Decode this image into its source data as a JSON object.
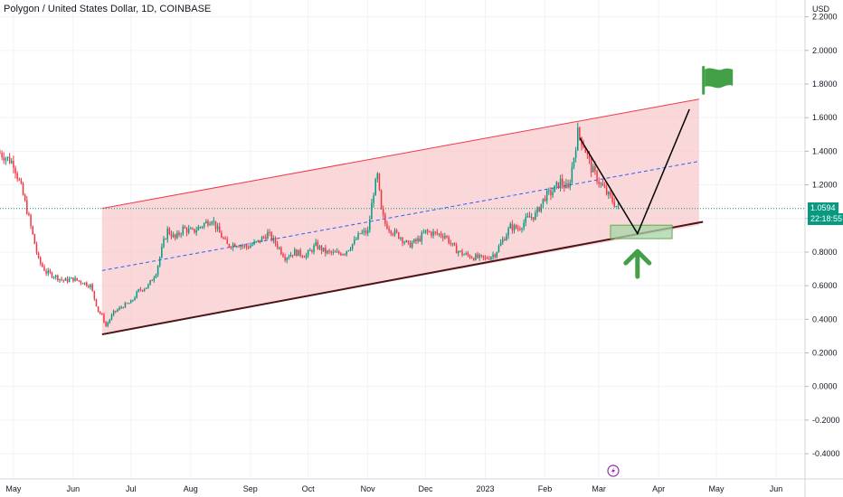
{
  "header": {
    "title": "Polygon / United States Dollar, 1D, COINBASE"
  },
  "price_scale": {
    "unit": "USD"
  },
  "last_price": {
    "value": "1.0594",
    "countdown": "22:18:55",
    "color": "#089981"
  },
  "colors": {
    "channel_fill": "#f8c6c8",
    "channel_line": "#f23645",
    "support_line": "#4a1418",
    "midline": "#2962ff",
    "up_candle": "#089981",
    "down_candle": "#f23645",
    "target_zone": "#a5d6a7",
    "arrow": "#43a047",
    "flag": "#43a047",
    "path_line": "#000000"
  },
  "icons": {
    "flag": "flag-icon",
    "arrow": "up-arrow-icon",
    "bolt": "lightning-icon"
  },
  "chart_data": {
    "type": "candlestick",
    "y_ticks": [
      "2.2000",
      "2.0000",
      "1.8000",
      "1.6000",
      "1.4000",
      "1.2000",
      "1.0000",
      "0.8000",
      "0.6000",
      "0.4000",
      "0.2000",
      "0.0000",
      "-0.2000",
      "-0.4000"
    ],
    "y_tick_values": [
      2.2,
      2.0,
      1.8,
      1.6,
      1.4,
      1.2,
      1.0,
      0.8,
      0.6,
      0.4,
      0.2,
      0.0,
      -0.2,
      -0.4
    ],
    "ylim": [
      -0.55,
      2.3
    ],
    "x_ticks": [
      "May",
      "Jun",
      "Jul",
      "Aug",
      "Sep",
      "Oct",
      "Nov",
      "Dec",
      "2023",
      "Feb",
      "Mar",
      "Apr",
      "May",
      "Jun"
    ],
    "x_tick_dates": [
      "2022-05-01",
      "2022-06-01",
      "2022-07-01",
      "2022-08-01",
      "2022-09-01",
      "2022-10-01",
      "2022-11-01",
      "2022-12-01",
      "2023-01-01",
      "2023-02-01",
      "2023-03-01",
      "2023-04-01",
      "2023-05-01",
      "2023-06-01"
    ],
    "xlim": [
      "2022-04-24",
      "2023-06-16"
    ],
    "grid": true,
    "price_series": [
      [
        "2022-04-24",
        1.39
      ],
      [
        "2022-05-01",
        1.33
      ],
      [
        "2022-05-05",
        1.18
      ],
      [
        "2022-05-08",
        1.05
      ],
      [
        "2022-05-12",
        0.85
      ],
      [
        "2022-05-14",
        0.75
      ],
      [
        "2022-05-18",
        0.68
      ],
      [
        "2022-05-22",
        0.66
      ],
      [
        "2022-05-27",
        0.63
      ],
      [
        "2022-06-01",
        0.64
      ],
      [
        "2022-06-06",
        0.62
      ],
      [
        "2022-06-10",
        0.6
      ],
      [
        "2022-06-14",
        0.45
      ],
      [
        "2022-06-16",
        0.42
      ],
      [
        "2022-06-18",
        0.36
      ],
      [
        "2022-06-22",
        0.44
      ],
      [
        "2022-06-27",
        0.48
      ],
      [
        "2022-07-01",
        0.5
      ],
      [
        "2022-07-05",
        0.57
      ],
      [
        "2022-07-10",
        0.6
      ],
      [
        "2022-07-14",
        0.68
      ],
      [
        "2022-07-18",
        0.86
      ],
      [
        "2022-07-20",
        0.93
      ],
      [
        "2022-07-24",
        0.88
      ],
      [
        "2022-07-28",
        0.94
      ],
      [
        "2022-08-02",
        0.92
      ],
      [
        "2022-08-07",
        0.96
      ],
      [
        "2022-08-12",
        1.0
      ],
      [
        "2022-08-15",
        0.93
      ],
      [
        "2022-08-20",
        0.84
      ],
      [
        "2022-08-25",
        0.85
      ],
      [
        "2022-08-30",
        0.83
      ],
      [
        "2022-09-05",
        0.86
      ],
      [
        "2022-09-10",
        0.91
      ],
      [
        "2022-09-15",
        0.84
      ],
      [
        "2022-09-19",
        0.77
      ],
      [
        "2022-09-24",
        0.8
      ],
      [
        "2022-09-30",
        0.78
      ],
      [
        "2022-10-05",
        0.84
      ],
      [
        "2022-10-10",
        0.8
      ],
      [
        "2022-10-15",
        0.79
      ],
      [
        "2022-10-20",
        0.8
      ],
      [
        "2022-10-25",
        0.86
      ],
      [
        "2022-10-28",
        0.91
      ],
      [
        "2022-11-01",
        0.92
      ],
      [
        "2022-11-04",
        1.16
      ],
      [
        "2022-11-06",
        1.25
      ],
      [
        "2022-11-08",
        1.04
      ],
      [
        "2022-11-10",
        0.97
      ],
      [
        "2022-11-14",
        0.92
      ],
      [
        "2022-11-18",
        0.89
      ],
      [
        "2022-11-22",
        0.84
      ],
      [
        "2022-11-27",
        0.87
      ],
      [
        "2022-12-01",
        0.92
      ],
      [
        "2022-12-06",
        0.91
      ],
      [
        "2022-12-11",
        0.9
      ],
      [
        "2022-12-16",
        0.82
      ],
      [
        "2022-12-20",
        0.79
      ],
      [
        "2022-12-26",
        0.77
      ],
      [
        "2023-01-01",
        0.76
      ],
      [
        "2023-01-06",
        0.79
      ],
      [
        "2023-01-10",
        0.87
      ],
      [
        "2023-01-14",
        0.95
      ],
      [
        "2023-01-18",
        0.94
      ],
      [
        "2023-01-23",
        1.0
      ],
      [
        "2023-01-27",
        1.02
      ],
      [
        "2023-02-01",
        1.13
      ],
      [
        "2023-02-05",
        1.16
      ],
      [
        "2023-02-09",
        1.22
      ],
      [
        "2023-02-13",
        1.17
      ],
      [
        "2023-02-16",
        1.37
      ],
      [
        "2023-02-18",
        1.51
      ],
      [
        "2023-02-21",
        1.44
      ],
      [
        "2023-02-25",
        1.3
      ],
      [
        "2023-03-01",
        1.22
      ],
      [
        "2023-03-05",
        1.15
      ],
      [
        "2023-03-09",
        1.09
      ],
      [
        "2023-03-11",
        1.06
      ]
    ],
    "channel": {
      "upper": [
        [
          "2022-06-16",
          1.06
        ],
        [
          "2023-04-22",
          1.71
        ]
      ],
      "lower": [
        [
          "2022-06-16",
          0.31
        ],
        [
          "2023-04-22",
          0.96
        ]
      ],
      "support_extension": [
        [
          "2022-06-16",
          0.31
        ],
        [
          "2023-04-24",
          0.98
        ]
      ],
      "midline": [
        [
          "2022-06-16",
          0.69
        ],
        [
          "2023-04-22",
          1.34
        ]
      ]
    },
    "projection": [
      [
        "2023-02-19",
        1.48
      ],
      [
        "2023-03-21",
        0.91
      ],
      [
        "2023-04-17",
        1.65
      ]
    ],
    "target_zone": {
      "x": [
        "2023-03-07",
        "2023-04-08"
      ],
      "y": [
        0.88,
        0.96
      ]
    }
  }
}
